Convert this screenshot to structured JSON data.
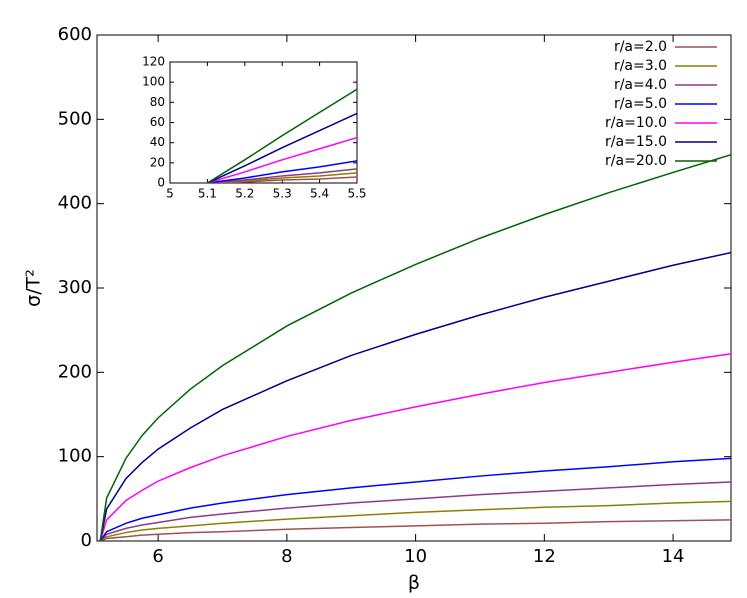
{
  "chart_data": [
    {
      "type": "line",
      "x_label": "β",
      "y_label": "σ/T²",
      "x": [
        5.1,
        5.2,
        5.5,
        5.75,
        6,
        6.5,
        7,
        8,
        9,
        10,
        11,
        12,
        13,
        14,
        14.9
      ],
      "series": [
        {
          "name": "r/a=2.0",
          "color": "#a0504f",
          "values": [
            0,
            3,
            5,
            7,
            8,
            10,
            11,
            14,
            16,
            18,
            20,
            21,
            23,
            24,
            25
          ]
        },
        {
          "name": "r/a=3.0",
          "color": "#8b8000",
          "values": [
            0,
            5,
            10,
            13,
            15,
            18,
            21,
            26,
            30,
            34,
            37,
            40,
            42,
            45,
            47
          ]
        },
        {
          "name": "r/a=4.0",
          "color": "#8b3a8b",
          "values": [
            0,
            8,
            15,
            19,
            22,
            28,
            32,
            39,
            45,
            50,
            55,
            59,
            63,
            67,
            70
          ]
        },
        {
          "name": "r/a=5.0",
          "color": "#0000ff",
          "values": [
            0,
            11,
            21,
            27,
            31,
            39,
            45,
            55,
            63,
            70,
            77,
            83,
            88,
            94,
            98
          ]
        },
        {
          "name": "r/a=10.0",
          "color": "#ff00ff",
          "values": [
            0,
            25,
            48,
            60,
            71,
            87,
            101,
            124,
            143,
            159,
            174,
            188,
            200,
            212,
            222
          ]
        },
        {
          "name": "r/a=15.0",
          "color": "#00008b",
          "values": [
            0,
            38,
            74,
            93,
            109,
            134,
            156,
            190,
            220,
            245,
            268,
            289,
            308,
            327,
            342
          ]
        },
        {
          "name": "r/a=20.0",
          "color": "#006400",
          "values": [
            0,
            51,
            98,
            125,
            146,
            180,
            208,
            255,
            294,
            328,
            359,
            387,
            413,
            437,
            458
          ]
        }
      ],
      "xlim": [
        5.05,
        14.9
      ],
      "xticks": [
        6,
        8,
        10,
        12,
        14
      ],
      "ylim": [
        0,
        600
      ],
      "yticks": [
        0,
        100,
        200,
        300,
        400,
        500,
        600
      ],
      "legend": "upper right"
    },
    {
      "type": "line",
      "x": [
        5.1,
        5.2,
        5.3,
        5.4,
        5.5
      ],
      "series": [
        {
          "color": "#a0504f",
          "values": [
            0,
            1,
            3,
            4,
            6
          ]
        },
        {
          "color": "#8b8000",
          "values": [
            0,
            2,
            5,
            7,
            10
          ]
        },
        {
          "color": "#8b3a8b",
          "values": [
            0,
            3,
            7,
            10,
            14
          ]
        },
        {
          "color": "#0000ff",
          "values": [
            0,
            5,
            11,
            16,
            22
          ]
        },
        {
          "color": "#ff00ff",
          "values": [
            0,
            11,
            23,
            34,
            45
          ]
        },
        {
          "color": "#00008b",
          "values": [
            0,
            17,
            35,
            52,
            69
          ]
        },
        {
          "color": "#006400",
          "values": [
            0,
            23,
            47,
            70,
            93
          ]
        }
      ],
      "xlim": [
        5,
        5.5
      ],
      "xticks": [
        5,
        5.1,
        5.2,
        5.3,
        5.4,
        5.5
      ],
      "ylim": [
        0,
        120
      ],
      "yticks": [
        0,
        20,
        40,
        60,
        80,
        100,
        120
      ]
    }
  ]
}
